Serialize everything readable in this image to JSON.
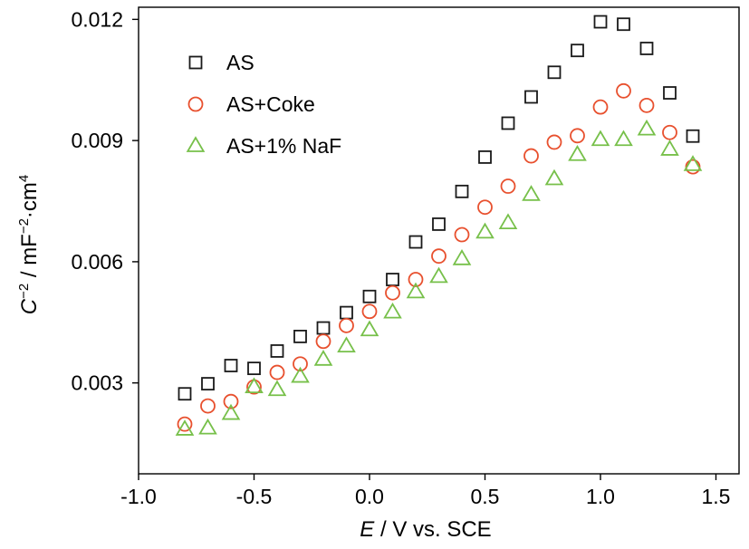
{
  "chart_data": {
    "type": "scatter",
    "title": "",
    "xlabel": {
      "italic": "E",
      "rest": " / V vs. SCE"
    },
    "ylabel": {
      "italic": "C",
      "sup1": "−2",
      "mid": " / mF",
      "sup2": "−2",
      "tail": "·cm",
      "sup3": "4"
    },
    "xlim": [
      -1.0,
      1.6
    ],
    "ylim": [
      0.00075,
      0.0123
    ],
    "x_ticks": [
      -1.0,
      -0.5,
      0.0,
      0.5,
      1.0,
      1.5
    ],
    "x_tick_labels": [
      "-1.0",
      "-0.5",
      "0.0",
      "0.5",
      "1.0",
      "1.5"
    ],
    "y_ticks": [
      0.003,
      0.006,
      0.009,
      0.012
    ],
    "y_tick_labels": [
      "0.003",
      "0.006",
      "0.009",
      "0.012"
    ],
    "grid": false,
    "legend_position": "top-left",
    "series": [
      {
        "name": "AS",
        "marker": "square",
        "color": "#1a1a1a",
        "x": [
          -0.8,
          -0.7,
          -0.6,
          -0.5,
          -0.4,
          -0.3,
          -0.2,
          -0.1,
          0.0,
          0.1,
          0.2,
          0.3,
          0.4,
          0.5,
          0.6,
          0.7,
          0.8,
          0.9,
          1.0,
          1.1,
          1.2,
          1.3,
          1.4
        ],
        "y": [
          0.00273,
          0.00298,
          0.00343,
          0.00336,
          0.00379,
          0.00415,
          0.00436,
          0.00474,
          0.00514,
          0.00556,
          0.00649,
          0.00693,
          0.00774,
          0.00859,
          0.00943,
          0.01008,
          0.01069,
          0.01123,
          0.01194,
          0.01188,
          0.01128,
          0.01018,
          0.00911
        ]
      },
      {
        "name": "AS+Coke",
        "marker": "circle",
        "color": "#e8502e",
        "x": [
          -0.8,
          -0.7,
          -0.6,
          -0.5,
          -0.4,
          -0.3,
          -0.2,
          -0.1,
          0.0,
          0.1,
          0.2,
          0.3,
          0.4,
          0.5,
          0.6,
          0.7,
          0.8,
          0.9,
          1.0,
          1.1,
          1.2,
          1.3,
          1.4
        ],
        "y": [
          0.00198,
          0.00243,
          0.00254,
          0.0029,
          0.00326,
          0.00347,
          0.00403,
          0.00442,
          0.00477,
          0.00523,
          0.00556,
          0.00614,
          0.00667,
          0.00735,
          0.00787,
          0.00862,
          0.00896,
          0.00912,
          0.00983,
          0.01023,
          0.00987,
          0.0092,
          0.00835
        ]
      },
      {
        "name": "AS+1% NaF",
        "marker": "triangle",
        "color": "#77c04a",
        "x": [
          -0.8,
          -0.7,
          -0.6,
          -0.5,
          -0.4,
          -0.3,
          -0.2,
          -0.1,
          0.0,
          0.1,
          0.2,
          0.3,
          0.4,
          0.5,
          0.6,
          0.7,
          0.8,
          0.9,
          1.0,
          1.1,
          1.2,
          1.3,
          1.4
        ],
        "y": [
          0.00185,
          0.00188,
          0.00224,
          0.0029,
          0.00283,
          0.00316,
          0.00358,
          0.00391,
          0.00431,
          0.00475,
          0.00525,
          0.00563,
          0.00607,
          0.00673,
          0.00696,
          0.00766,
          0.00805,
          0.00865,
          0.00902,
          0.00902,
          0.00928,
          0.00878,
          0.0084
        ]
      }
    ]
  }
}
